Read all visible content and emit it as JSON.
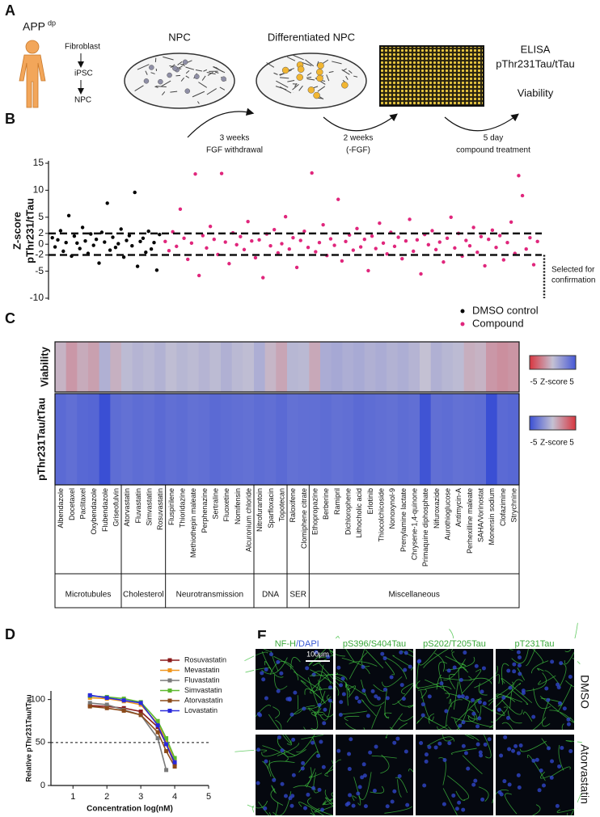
{
  "panel_a": {
    "letter": "A",
    "subject": "APP",
    "subject_sup": "dp",
    "steps": [
      "Fibroblast",
      "iPSC",
      "NPC"
    ],
    "dish1": "NPC",
    "dish2": "Differentiated NPC",
    "readout": [
      "ELISA",
      "pThr231Tau/tTau",
      "Viability"
    ],
    "transitions": [
      [
        "3 weeks",
        "FGF withdrawal"
      ],
      [
        "2 weeks",
        "(-FGF)"
      ],
      [
        "5 day",
        "compound treatment"
      ]
    ]
  },
  "chart_data": [
    {
      "type": "scatter",
      "panel_label": "B",
      "ylabel": [
        "Z-score",
        "pThr231/tTau"
      ],
      "series": [
        {
          "name": "DMSO control",
          "color": "#000000",
          "values": [
            1.2,
            -0.5,
            0.8,
            2.5,
            -1.3,
            0.3,
            5.3,
            -2.2,
            1.5,
            0.2,
            -0.8,
            3.1,
            0.6,
            -1.7,
            1.9,
            -0.2,
            0.9,
            -3.5,
            2.2,
            0.4,
            7.6,
            -1.1,
            1.3,
            -0.6,
            0.1,
            2.8,
            -2.4,
            0.7,
            1.6,
            -0.3,
            9.6,
            -4.1,
            0.5,
            1.1,
            -1.5,
            2.4,
            -0.9,
            0.3,
            -4.8,
            1.8
          ]
        },
        {
          "name": "Compound",
          "color": "#e0267c",
          "values": [
            0.5,
            -1.2,
            2.3,
            -0.4,
            6.5,
            1.1,
            -2.8,
            0.2,
            13.0,
            -5.8,
            1.6,
            -0.7,
            3.3,
            0.9,
            -1.9,
            13.1,
            0.4,
            -3.6,
            2.1,
            -0.1,
            1.4,
            -1.0,
            4.2,
            0.6,
            -2.5,
            0.8,
            -6.2,
            1.9,
            -0.3,
            2.7,
            -1.6,
            0.1,
            5.1,
            -0.9,
            1.2,
            -4.3,
            0.7,
            2.4,
            -0.6,
            13.2,
            -1.4,
            0.3,
            3.6,
            -2.1,
            1.0,
            -0.2,
            8.3,
            -3.1,
            0.5,
            1.7,
            -1.1,
            2.9,
            -0.5,
            0.9,
            -4.9,
            1.5,
            -0.8,
            3.9,
            0.2,
            -1.8,
            2.2,
            -0.4,
            1.3,
            -2.7,
            0.6,
            4.6,
            -1.3,
            0.8,
            -5.5,
            1.8,
            -0.1,
            2.5,
            -1.0,
            0.4,
            -3.3,
            1.1,
            5.0,
            -0.7,
            2.0,
            -2.2,
            0.7,
            -0.3,
            3.1,
            -1.5,
            1.4,
            -4.0,
            0.9,
            2.6,
            -0.6,
            1.6,
            -2.9,
            0.3,
            4.1,
            -1.7,
            12.7,
            9.0,
            -0.9,
            1.2,
            -3.8,
            0.5
          ]
        }
      ],
      "ylim": [
        -10,
        15
      ],
      "yticks": [
        -10,
        -5,
        -2,
        0,
        2,
        5,
        10,
        15
      ],
      "thresholds": [
        2,
        -2
      ],
      "annotation": [
        "Selected for",
        "confirmation"
      ]
    },
    {
      "type": "heatmap",
      "panel_label": "C",
      "groups": [
        {
          "name": "Microtubules",
          "categories": [
            "Albendazole",
            "Docetaxel",
            "Paclitaxel",
            "Oxybendazole",
            "Flubendazole",
            "Griseofulvin"
          ]
        },
        {
          "name": "Cholesterol",
          "categories": [
            "Atorvastatin",
            "Fluvastatin",
            "Simvastatin",
            "Rosuvastatin"
          ]
        },
        {
          "name": "Neurotransmission",
          "categories": [
            "Fluspirilene",
            "Thioridazine",
            "Methiothepin maleate",
            "Perphenazine",
            "Sertraline",
            "Fluoxetine",
            "Nomifensin",
            "Alcuronium chloride"
          ]
        },
        {
          "name": "DNA",
          "categories": [
            "Nitrofurantoin",
            "Sparfloxacin",
            "Topotecan"
          ]
        },
        {
          "name": "SER",
          "categories": [
            "Raloxifene",
            "Clomiphene citrate"
          ]
        },
        {
          "name": "Miscellaneous",
          "categories": [
            "Ethopropazine",
            "Berberine",
            "Ramipril",
            "Dichlorophene",
            "Lithocholic acid",
            "Erlotinib",
            "Thiocolchicoside",
            "Nonoxynol-9",
            "Prenylamine lactate",
            "Chrysene-1,4-quinone",
            "Primaquine diphosphate",
            "Nifuroxazide",
            "Aurothioglucose",
            "Antimycin-A",
            "Perhexilline maleate",
            "SAHA/Vorinostat",
            "Monensin sodium",
            "Clofazimine",
            "Strychnine"
          ]
        }
      ],
      "rows": [
        {
          "name": "Viability",
          "values": [
            -0.5,
            -1.5,
            -0.8,
            -1.2,
            0.8,
            -0.6,
            0.3,
            0.6,
            0.4,
            0.7,
            0.2,
            0.5,
            0.3,
            0.6,
            0.3,
            0.8,
            0.4,
            0.2,
            0.9,
            -0.4,
            -1.0,
            0.5,
            0.4,
            -0.9,
            1.0,
            1.2,
            0.9,
            1.1,
            0.8,
            1.0,
            0.7,
            0.9,
            0.6,
            0.0,
            0.8,
            0.5,
            0.3,
            -0.7,
            -0.5,
            -1.5,
            -1.8,
            -1.6
          ],
          "colorscale": {
            "range": [
              -5,
              5
            ],
            "ticks": [
              -5,
              5
            ],
            "label": "Z-score",
            "colors": [
              "#d8363f",
              "#c4c1d3",
              "#4658d6"
            ]
          }
        },
        {
          "name": "pThr231Tau/tTau",
          "values": [
            -3.8,
            -3.6,
            -3.9,
            -4.0,
            -5.0,
            -3.7,
            -3.5,
            -3.7,
            -3.6,
            -3.8,
            -3.6,
            -3.7,
            -3.5,
            -3.6,
            -3.8,
            -3.7,
            -3.6,
            -3.5,
            -3.7,
            -3.6,
            -3.8,
            -3.5,
            -3.6,
            -3.6,
            -3.7,
            -3.5,
            -3.6,
            -3.8,
            -3.7,
            -3.6,
            -3.5,
            -3.7,
            -3.6,
            -4.8,
            -3.6,
            -3.7,
            -3.5,
            -3.6,
            -3.7,
            -5.0,
            -3.8,
            -3.9
          ],
          "colorscale": {
            "range": [
              -5,
              5
            ],
            "ticks": [
              -5,
              5
            ],
            "label": "Z-score",
            "colors": [
              "#3a4fd4",
              "#c4c1d3",
              "#d8363f"
            ]
          }
        }
      ]
    },
    {
      "type": "line",
      "panel_label": "D",
      "xlabel": "Concentration log(nM)",
      "ylabel": "Relative pThr231Tau/tTau",
      "x": [
        1.5,
        2,
        2.5,
        3,
        3.5,
        3.75,
        4
      ],
      "series": [
        {
          "name": "Rosuvastatin",
          "color": "#8b1a1a",
          "values": [
            93,
            92,
            90,
            86,
            68,
            48,
            25
          ]
        },
        {
          "name": "Mevastatin",
          "color": "#f0961e",
          "values": [
            102,
            101,
            98,
            94,
            72,
            52,
            30
          ]
        },
        {
          "name": "Fluvastatin",
          "color": "#7a7a7a",
          "values": [
            96,
            94,
            88,
            82,
            55,
            18,
            null
          ]
        },
        {
          "name": "Simvastatin",
          "color": "#5cb82e",
          "values": [
            104,
            103,
            101,
            97,
            75,
            55,
            32
          ]
        },
        {
          "name": "Atorvastatin",
          "color": "#8b4a1a",
          "values": [
            92,
            90,
            87,
            82,
            62,
            40,
            22
          ]
        },
        {
          "name": "Lovastatin",
          "color": "#2a2adc",
          "values": [
            105,
            102,
            99,
            96,
            70,
            48,
            27
          ]
        }
      ],
      "xlim": [
        0.35,
        5
      ],
      "xticks": [
        1,
        2,
        3,
        4,
        5
      ],
      "ylim": [
        0,
        110
      ],
      "yticks": [
        0,
        50,
        100
      ],
      "reference_line": 50
    }
  ],
  "panel_e": {
    "letter": "E",
    "columns": [
      "NF-H",
      "/DAPI",
      "pS396/S404Tau",
      "pS202/T205Tau",
      "pT231Tau"
    ],
    "scale_bar": "100μm",
    "rows": [
      "DMSO",
      "Atorvastatin"
    ]
  }
}
